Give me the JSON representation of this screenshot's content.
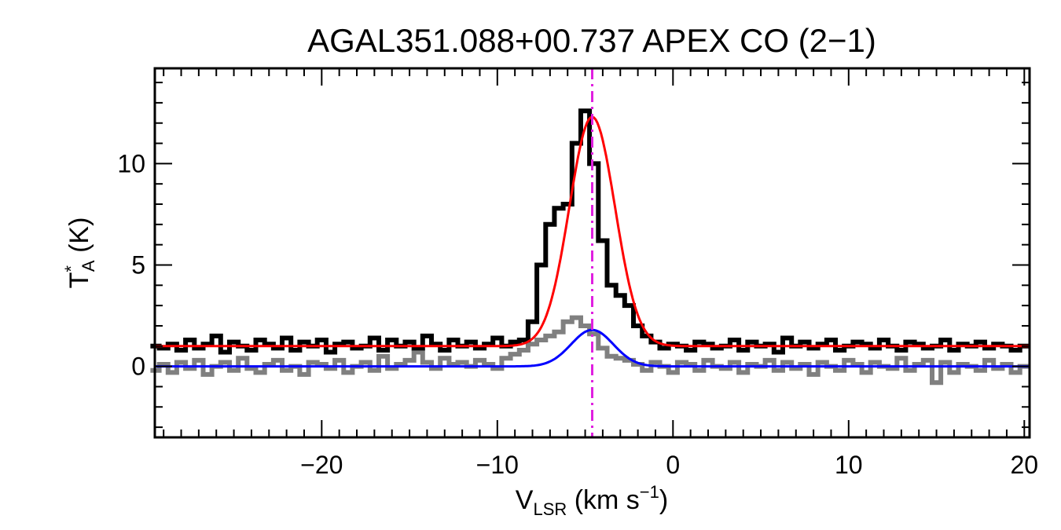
{
  "chart_data": {
    "type": "line",
    "title": "AGAL351.088+00.737  APEX CO (2−1)",
    "xlabel": {
      "main": "V",
      "sub": "LSR",
      "rest": " (km s",
      "sup": "−1",
      "close": ")"
    },
    "ylabel": {
      "main": "T",
      "sup": "*",
      "sub": "A",
      "rest": " (K)"
    },
    "xlim": [
      -29.5,
      20.3
    ],
    "ylim": [
      -3.5,
      14.7
    ],
    "xticks": [
      -20,
      -10,
      0,
      10,
      20
    ],
    "xtick_labels": [
      "−20",
      "−10",
      "0",
      "10",
      "20"
    ],
    "yticks": [
      0,
      5,
      10
    ],
    "ytick_labels": [
      "0",
      "5",
      "10"
    ],
    "x_minor_step": 1,
    "y_minor_step": 1,
    "grid": false,
    "vline": {
      "x": -4.6,
      "color": "#e020e0",
      "style": "dash-dot"
    },
    "series": [
      {
        "style": "step",
        "color": "#000000",
        "x": [
          -29.5,
          -29.0,
          -28.5,
          -28.0,
          -27.5,
          -27.0,
          -26.5,
          -26.0,
          -25.5,
          -25.0,
          -24.5,
          -24.0,
          -23.5,
          -23.0,
          -22.5,
          -22.0,
          -21.5,
          -21.0,
          -20.5,
          -20.0,
          -19.5,
          -19.0,
          -18.5,
          -18.0,
          -17.5,
          -17.0,
          -16.5,
          -16.0,
          -15.5,
          -15.0,
          -14.5,
          -14.0,
          -13.5,
          -13.0,
          -12.5,
          -12.0,
          -11.5,
          -11.0,
          -10.5,
          -10.0,
          -9.5,
          -9.0,
          -8.5,
          -8.0,
          -7.5,
          -7.0,
          -6.5,
          -6.0,
          -5.5,
          -5.0,
          -4.5,
          -4.0,
          -3.5,
          -3.0,
          -2.5,
          -2.0,
          -1.5,
          -1.0,
          -0.5,
          0.0,
          0.5,
          1.0,
          1.5,
          2.0,
          2.5,
          3.0,
          3.5,
          4.0,
          4.5,
          5.0,
          5.5,
          6.0,
          6.5,
          7.0,
          7.5,
          8.0,
          8.5,
          9.0,
          9.5,
          10.0,
          10.5,
          11.0,
          11.5,
          12.0,
          12.5,
          13.0,
          13.5,
          14.0,
          14.5,
          15.0,
          15.5,
          16.0,
          16.5,
          17.0,
          17.5,
          18.0,
          18.5,
          19.0,
          19.5,
          20.0
        ],
        "y": [
          1.0,
          0.9,
          1.1,
          0.8,
          1.3,
          0.9,
          1.1,
          1.5,
          0.7,
          1.2,
          1.0,
          0.8,
          1.3,
          1.1,
          0.9,
          1.4,
          0.8,
          1.2,
          1.0,
          1.3,
          0.7,
          1.1,
          1.2,
          0.9,
          1.0,
          1.4,
          0.8,
          1.3,
          1.0,
          1.2,
          0.9,
          1.5,
          1.1,
          0.8,
          1.3,
          1.0,
          1.2,
          0.9,
          1.1,
          1.4,
          1.0,
          1.2,
          1.3,
          2.2,
          5.0,
          7.0,
          7.8,
          8.0,
          11.0,
          12.6,
          10.0,
          6.2,
          4.0,
          3.5,
          3.0,
          2.0,
          1.5,
          1.2,
          0.9,
          1.1,
          1.0,
          0.8,
          1.2,
          1.1,
          0.9,
          1.0,
          1.3,
          0.8,
          1.2,
          1.0,
          1.1,
          0.7,
          1.4,
          1.0,
          1.2,
          0.9,
          1.1,
          1.3,
          0.8,
          1.0,
          1.2,
          1.1,
          0.9,
          1.3,
          1.0,
          0.8,
          1.2,
          1.1,
          0.9,
          1.0,
          1.3,
          0.8,
          1.1,
          1.0,
          1.2,
          0.9,
          1.1,
          1.0,
          0.8,
          1.0
        ]
      },
      {
        "style": "step",
        "color": "#808080",
        "x": [
          -29.5,
          -29.0,
          -28.5,
          -28.0,
          -27.5,
          -27.0,
          -26.5,
          -26.0,
          -25.5,
          -25.0,
          -24.5,
          -24.0,
          -23.5,
          -23.0,
          -22.5,
          -22.0,
          -21.5,
          -21.0,
          -20.5,
          -20.0,
          -19.5,
          -19.0,
          -18.5,
          -18.0,
          -17.5,
          -17.0,
          -16.5,
          -16.0,
          -15.5,
          -15.0,
          -14.5,
          -14.0,
          -13.5,
          -13.0,
          -12.5,
          -12.0,
          -11.5,
          -11.0,
          -10.5,
          -10.0,
          -9.5,
          -9.0,
          -8.5,
          -8.0,
          -7.5,
          -7.0,
          -6.5,
          -6.0,
          -5.5,
          -5.0,
          -4.5,
          -4.0,
          -3.5,
          -3.0,
          -2.5,
          -2.0,
          -1.5,
          -1.0,
          -0.5,
          0.0,
          0.5,
          1.0,
          1.5,
          2.0,
          2.5,
          3.0,
          3.5,
          4.0,
          4.5,
          5.0,
          5.5,
          6.0,
          6.5,
          7.0,
          7.5,
          8.0,
          8.5,
          9.0,
          9.5,
          10.0,
          10.5,
          11.0,
          11.5,
          12.0,
          12.5,
          13.0,
          13.5,
          14.0,
          14.5,
          15.0,
          15.5,
          16.0,
          16.5,
          17.0,
          17.5,
          18.0,
          18.5,
          19.0,
          19.5,
          20.0
        ],
        "y": [
          -0.2,
          0.1,
          -0.3,
          0.2,
          -0.1,
          0.3,
          -0.4,
          0.0,
          0.2,
          -0.2,
          0.4,
          -0.1,
          -0.3,
          0.1,
          0.3,
          -0.2,
          0.0,
          -0.4,
          0.2,
          0.1,
          -0.1,
          0.3,
          -0.3,
          0.0,
          0.2,
          -0.2,
          0.5,
          -0.1,
          0.1,
          0.3,
          0.7,
          0.2,
          -0.1,
          0.4,
          0.1,
          0.2,
          0.0,
          0.3,
          0.1,
          -0.1,
          0.4,
          0.6,
          0.8,
          1.1,
          1.3,
          1.5,
          1.7,
          2.2,
          2.4,
          2.0,
          1.6,
          0.9,
          0.5,
          0.4,
          0.3,
          0.1,
          -0.2,
          0.2,
          0.0,
          -0.3,
          0.2,
          0.1,
          -0.2,
          0.3,
          0.0,
          -0.1,
          0.2,
          -0.3,
          0.1,
          0.0,
          0.3,
          -0.2,
          0.2,
          -0.1,
          0.1,
          -0.4,
          0.2,
          0.0,
          -0.2,
          0.3,
          0.1,
          -0.3,
          0.2,
          0.0,
          -0.1,
          0.4,
          -0.2,
          0.1,
          0.3,
          -0.8,
          0.2,
          -0.3,
          0.1,
          0.0,
          -0.2,
          0.3,
          -0.1,
          0.1,
          -0.3,
          0.0
        ]
      },
      {
        "style": "smooth",
        "color": "#ff0000",
        "gaussian": {
          "amp": 11.3,
          "center": -4.6,
          "sigma": 1.3,
          "baseline": 1.0
        }
      },
      {
        "style": "smooth",
        "color": "#0000ff",
        "gaussian": {
          "amp": 1.8,
          "center": -4.6,
          "sigma": 1.2,
          "baseline": 0.0
        }
      }
    ]
  }
}
